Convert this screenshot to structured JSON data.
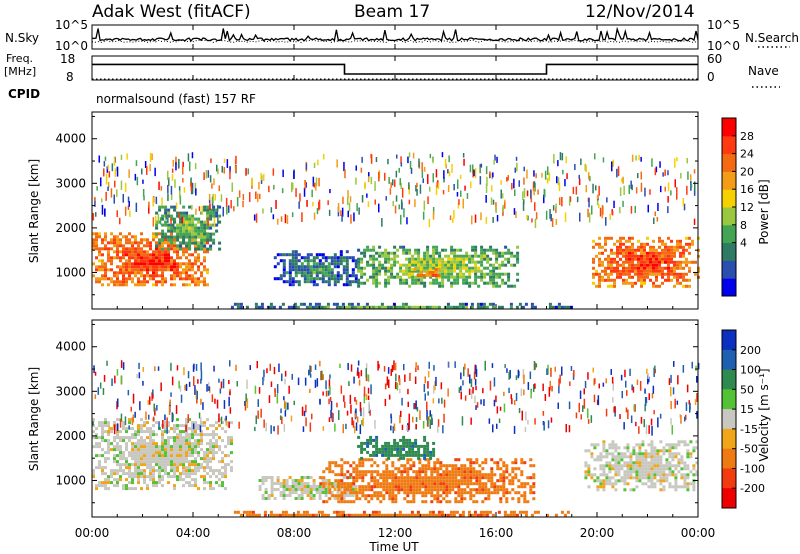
{
  "header": {
    "site": "Adak West (fitACF)",
    "beam": "Beam 17",
    "date": "12/Nov/2014"
  },
  "panels": {
    "nsky_label": "N.Sky",
    "nsky_ticks": [
      "10^5",
      "10^0"
    ],
    "nsearch_label": "N.Search",
    "nsearch_ticks": [
      "10^5",
      "10^0"
    ],
    "freq_label_1": "Freq.",
    "freq_label_2": "[MHz]",
    "freq_ticks": [
      "18",
      "8"
    ],
    "nave_label": "Nave",
    "nave_ticks": [
      "60",
      "0"
    ],
    "cpid_label": "CPID",
    "cpid_text": "normalsound (fast) 157 RF"
  },
  "axes": {
    "ylabel": "Slant Range [km]",
    "xlabel": "Time UT",
    "yticks": [
      "4000",
      "3000",
      "2000",
      "1000"
    ],
    "xticks": [
      "00:00",
      "04:00",
      "08:00",
      "12:00",
      "16:00",
      "20:00",
      "00:00"
    ]
  },
  "colorbars": {
    "power": {
      "label": "Power [dB]",
      "ticks": [
        "28",
        "24",
        "20",
        "16",
        "12",
        "8",
        "4"
      ],
      "colors": [
        "#0000ee",
        "#2a4db0",
        "#2f7a62",
        "#43a553",
        "#99c73f",
        "#f5d100",
        "#f39c18",
        "#f46a12",
        "#ff3a10",
        "#ff0000"
      ]
    },
    "velocity": {
      "label": "Velocity [m s⁻¹]",
      "ticks": [
        "200",
        "100",
        "50",
        "15",
        "-15",
        "-50",
        "-100",
        "-200"
      ],
      "colors": [
        "#0b2fbf",
        "#1e5fb0",
        "#2f8a4f",
        "#54c235",
        "#c8c8c0",
        "#f0a618",
        "#f07a12",
        "#f23c0f",
        "#ee0000"
      ]
    }
  },
  "chart_data": [
    {
      "type": "line",
      "title": "N.Sky / N.Search",
      "x_range_hours": [
        0,
        24
      ],
      "y_scale": "log",
      "ylim": [
        "10^0",
        "10^5"
      ],
      "series": [
        {
          "name": "N.Sky",
          "style": "solid",
          "note": "noise mostly near 10^2 with spikes"
        },
        {
          "name": "N.Search",
          "style": "dotted"
        }
      ]
    },
    {
      "type": "line",
      "title": "Freq. / Nave",
      "x": [
        0,
        10,
        10,
        18,
        18,
        24
      ],
      "series": [
        {
          "name": "Freq.",
          "unit": "MHz",
          "values": [
            14.5,
            14.5,
            10.5,
            10.5,
            14.5,
            14.5
          ],
          "ylim": [
            8,
            18
          ]
        },
        {
          "name": "Nave",
          "values": [
            2,
            2,
            2,
            2,
            2,
            2
          ],
          "ylim": [
            0,
            60
          ]
        }
      ]
    },
    {
      "type": "heatmap",
      "title": "Power [dB]",
      "x_range_hours": [
        0,
        24
      ],
      "ylim_km": [
        180,
        4600
      ],
      "clim": [
        0,
        32
      ],
      "regions": [
        {
          "t": [
            0,
            4.6
          ],
          "r": [
            700,
            1900
          ],
          "level": 28
        },
        {
          "t": [
            2.5,
            5.0
          ],
          "r": [
            1500,
            2500
          ],
          "level": 14
        },
        {
          "t": [
            7.2,
            10.5
          ],
          "r": [
            700,
            1500
          ],
          "level": 10
        },
        {
          "t": [
            10.5,
            16.8
          ],
          "r": [
            700,
            1600
          ],
          "level": 16
        },
        {
          "t": [
            12.5,
            14.0
          ],
          "r": [
            900,
            1100
          ],
          "level": 26
        },
        {
          "t": [
            19.8,
            24
          ],
          "r": [
            700,
            1800
          ],
          "level": 28
        },
        {
          "t": [
            5.5,
            19
          ],
          "r": [
            200,
            320
          ],
          "level": 12
        }
      ]
    },
    {
      "type": "heatmap",
      "title": "Velocity [m s⁻¹]",
      "x_range_hours": [
        0,
        24
      ],
      "ylim_km": [
        180,
        4600
      ],
      "clim": [
        -250,
        250
      ],
      "regions": [
        {
          "t": [
            0,
            5.5
          ],
          "r": [
            800,
            2400
          ],
          "vel": 0
        },
        {
          "t": [
            6.6,
            10.5
          ],
          "r": [
            600,
            1100
          ],
          "vel": 0
        },
        {
          "t": [
            9.0,
            17.5
          ],
          "r": [
            500,
            1500
          ],
          "vel": -60
        },
        {
          "t": [
            10.5,
            13.5
          ],
          "r": [
            1500,
            2000
          ],
          "vel": 60
        },
        {
          "t": [
            19.5,
            24
          ],
          "r": [
            800,
            1900
          ],
          "vel": 0
        },
        {
          "t": [
            5.5,
            19
          ],
          "r": [
            200,
            320
          ],
          "vel": -60
        }
      ]
    }
  ]
}
